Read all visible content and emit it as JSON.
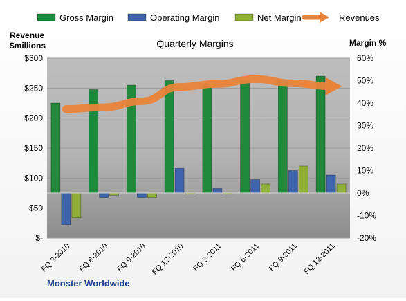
{
  "chart_data": {
    "type": "bar",
    "title": "Quarterly Margins",
    "left_axis_label_line1": "Revenue",
    "left_axis_label_line2": "$millions",
    "right_axis_label": "Margin %",
    "footer": "Monster Worldwide",
    "categories": [
      "FQ 3-2010",
      "FQ 6-2010",
      "FQ 9-2010",
      "FQ 12-2010",
      "FQ 3-2011",
      "FQ 6-2011",
      "FQ 9-2011",
      "FQ 12-2011"
    ],
    "left_axis": {
      "ylim": [
        0,
        300
      ],
      "ticks": [
        0,
        50,
        100,
        150,
        200,
        250,
        300
      ],
      "tick_labels": [
        "$-",
        "$50",
        "$100",
        "$150",
        "$200",
        "$250",
        "$300"
      ]
    },
    "right_axis": {
      "ylim": [
        -20,
        60
      ],
      "ticks": [
        -20,
        -10,
        0,
        10,
        20,
        30,
        40,
        50,
        60
      ],
      "tick_labels": [
        "-20%",
        "-10%",
        "0%",
        "10%",
        "20%",
        "30%",
        "40%",
        "50%",
        "60%"
      ]
    },
    "series": [
      {
        "name": "Gross Margin",
        "axis": "right",
        "kind": "bar",
        "color": "#1f8a3c",
        "values": [
          40,
          46,
          48,
          50,
          48,
          50,
          50,
          52
        ]
      },
      {
        "name": "Operating Margin",
        "axis": "right",
        "kind": "bar",
        "color": "#3d64ad",
        "values": [
          -14,
          -2,
          -2,
          11,
          2,
          6,
          10,
          8
        ]
      },
      {
        "name": "Net Margin",
        "axis": "right",
        "kind": "bar",
        "color": "#8fae3a",
        "values": [
          -11,
          -1,
          -2,
          0,
          0,
          4,
          12,
          4
        ]
      },
      {
        "name": "Revenues",
        "axis": "left",
        "kind": "line",
        "color": "#e8833a",
        "values": [
          215,
          218,
          228,
          252,
          257,
          265,
          258,
          253
        ]
      }
    ],
    "grid": true,
    "legend_position": "top"
  }
}
